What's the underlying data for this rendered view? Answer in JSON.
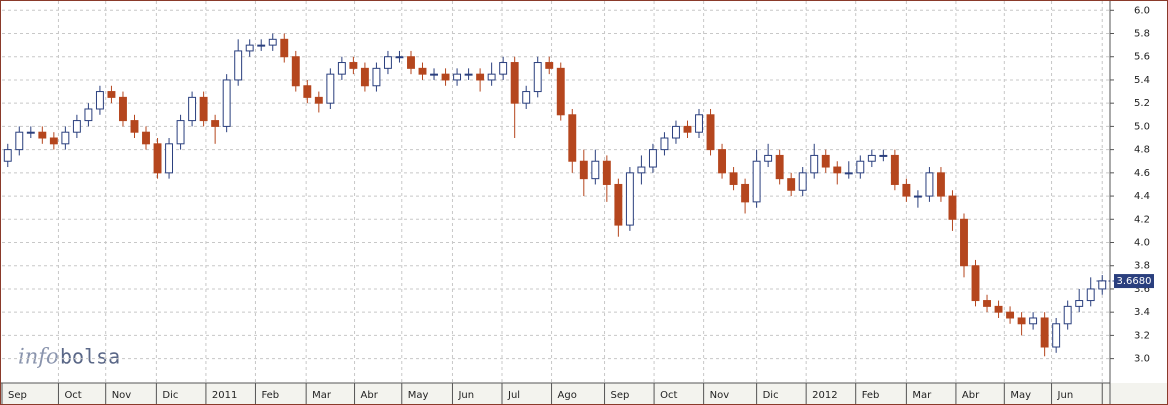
{
  "chart_data": {
    "type": "candlestick",
    "open": [
      4.7,
      4.8,
      4.95,
      4.95,
      4.9,
      4.85,
      4.95,
      5.05,
      5.15,
      5.3,
      5.25,
      5.05,
      4.95,
      4.85,
      4.6,
      4.85,
      5.05,
      5.25,
      5.05,
      5.0,
      5.4,
      5.65,
      5.7,
      5.7,
      5.75,
      5.6,
      5.35,
      5.25,
      5.2,
      5.45,
      5.55,
      5.5,
      5.35,
      5.5,
      5.6,
      5.6,
      5.5,
      5.45,
      5.45,
      5.4,
      5.45,
      5.45,
      5.4,
      5.45,
      5.55,
      5.2,
      5.3,
      5.55,
      5.5,
      5.1,
      4.7,
      4.55,
      4.7,
      4.5,
      4.15,
      4.6,
      4.65,
      4.8,
      4.9,
      5.0,
      4.95,
      5.1,
      4.8,
      4.6,
      4.5,
      4.35,
      4.7,
      4.75,
      4.55,
      4.45,
      4.6,
      4.75,
      4.65,
      4.6,
      4.6,
      4.7,
      4.75,
      4.75,
      4.5,
      4.4,
      4.4,
      4.6,
      4.4,
      4.2,
      3.8,
      3.5,
      3.45,
      3.4,
      3.35,
      3.3,
      3.35,
      3.1,
      3.3,
      3.45,
      3.5,
      3.6
    ],
    "high": [
      4.85,
      5.0,
      5.0,
      5.0,
      4.95,
      5.0,
      5.1,
      5.2,
      5.35,
      5.35,
      5.3,
      5.1,
      5.0,
      4.9,
      4.9,
      5.1,
      5.3,
      5.3,
      5.1,
      5.45,
      5.75,
      5.75,
      5.75,
      5.8,
      5.8,
      5.65,
      5.4,
      5.3,
      5.5,
      5.6,
      5.6,
      5.55,
      5.55,
      5.65,
      5.65,
      5.65,
      5.55,
      5.5,
      5.5,
      5.5,
      5.5,
      5.5,
      5.55,
      5.6,
      5.6,
      5.35,
      5.6,
      5.6,
      5.55,
      5.15,
      4.8,
      4.8,
      4.75,
      4.55,
      4.65,
      4.75,
      4.85,
      4.95,
      5.05,
      5.05,
      5.15,
      5.15,
      4.85,
      4.65,
      4.55,
      4.8,
      4.85,
      4.8,
      4.6,
      4.65,
      4.85,
      4.8,
      4.7,
      4.7,
      4.75,
      4.8,
      4.8,
      4.8,
      4.55,
      4.45,
      4.65,
      4.65,
      4.45,
      4.25,
      3.85,
      3.55,
      3.5,
      3.45,
      3.4,
      3.4,
      3.4,
      3.35,
      3.5,
      3.6,
      3.7,
      3.72
    ],
    "low": [
      4.65,
      4.75,
      4.9,
      4.85,
      4.8,
      4.8,
      4.9,
      5.0,
      5.1,
      5.2,
      5.0,
      4.9,
      4.8,
      4.55,
      4.55,
      4.8,
      5.0,
      5.0,
      4.85,
      4.95,
      5.35,
      5.6,
      5.65,
      5.65,
      5.55,
      5.3,
      5.2,
      5.12,
      5.15,
      5.4,
      5.45,
      5.3,
      5.3,
      5.45,
      5.55,
      5.45,
      5.4,
      5.4,
      5.35,
      5.35,
      5.4,
      5.3,
      5.35,
      5.4,
      4.9,
      5.15,
      5.25,
      5.45,
      5.05,
      4.6,
      4.4,
      4.5,
      4.35,
      4.05,
      4.1,
      4.5,
      4.6,
      4.75,
      4.85,
      4.9,
      4.9,
      4.75,
      4.55,
      4.45,
      4.25,
      4.3,
      4.65,
      4.5,
      4.4,
      4.4,
      4.55,
      4.6,
      4.5,
      4.55,
      4.55,
      4.65,
      4.7,
      4.45,
      4.35,
      4.3,
      4.35,
      4.35,
      4.1,
      3.7,
      3.45,
      3.4,
      3.35,
      3.3,
      3.2,
      3.25,
      3.02,
      3.05,
      3.25,
      3.4,
      3.45,
      3.55
    ],
    "close": [
      4.8,
      4.95,
      4.95,
      4.9,
      4.85,
      4.95,
      5.05,
      5.15,
      5.3,
      5.25,
      5.05,
      4.95,
      4.85,
      4.6,
      4.85,
      5.05,
      5.25,
      5.05,
      5.0,
      5.4,
      5.65,
      5.7,
      5.7,
      5.75,
      5.6,
      5.35,
      5.25,
      5.2,
      5.45,
      5.55,
      5.5,
      5.35,
      5.5,
      5.6,
      5.6,
      5.5,
      5.45,
      5.45,
      5.4,
      5.45,
      5.45,
      5.4,
      5.45,
      5.55,
      5.2,
      5.3,
      5.55,
      5.5,
      5.1,
      4.7,
      4.55,
      4.7,
      4.5,
      4.15,
      4.6,
      4.65,
      4.8,
      4.9,
      5.0,
      4.95,
      5.1,
      4.8,
      4.6,
      4.5,
      4.35,
      4.7,
      4.75,
      4.55,
      4.45,
      4.6,
      4.75,
      4.65,
      4.6,
      4.6,
      4.7,
      4.75,
      4.75,
      4.5,
      4.4,
      4.4,
      4.6,
      4.4,
      4.2,
      3.8,
      3.5,
      3.45,
      3.4,
      3.35,
      3.3,
      3.35,
      3.1,
      3.3,
      3.45,
      3.5,
      3.6,
      3.67
    ],
    "colors": {
      "up": "#2a3f7e",
      "down": "#b5461e"
    },
    "xlim": [
      0,
      96
    ],
    "xticks": [
      {
        "value": 0,
        "label": "Sep"
      },
      {
        "value": 4.9,
        "label": "Oct"
      },
      {
        "value": 9.0,
        "label": "Nov"
      },
      {
        "value": 13.4,
        "label": "Dic"
      },
      {
        "value": 17.7,
        "label": "2011"
      },
      {
        "value": 22.0,
        "label": "Feb"
      },
      {
        "value": 26.4,
        "label": "Mar"
      },
      {
        "value": 30.6,
        "label": "Abr"
      },
      {
        "value": 34.7,
        "label": "May"
      },
      {
        "value": 39.1,
        "label": "Jun"
      },
      {
        "value": 43.4,
        "label": "Jul"
      },
      {
        "value": 47.7,
        "label": "Ago"
      },
      {
        "value": 52.3,
        "label": "Sep"
      },
      {
        "value": 56.6,
        "label": "Oct"
      },
      {
        "value": 60.9,
        "label": "Nov"
      },
      {
        "value": 65.5,
        "label": "Dic"
      },
      {
        "value": 69.8,
        "label": "2012"
      },
      {
        "value": 74.1,
        "label": "Feb"
      },
      {
        "value": 78.5,
        "label": "Mar"
      },
      {
        "value": 82.8,
        "label": "Abr"
      },
      {
        "value": 87.0,
        "label": "May"
      },
      {
        "value": 91.1,
        "label": "Jun"
      },
      {
        "value": 95.5,
        "label": ""
      }
    ],
    "ylim": [
      2.79,
      6.08
    ],
    "yticks": [
      {
        "value": 3,
        "label": "3.0"
      },
      {
        "value": 3.2,
        "label": "3.2"
      },
      {
        "value": 3.4,
        "label": "3.4"
      },
      {
        "value": 3.6,
        "label": "3.6"
      },
      {
        "value": 3.8,
        "label": "3.8"
      },
      {
        "value": 4,
        "label": "4.0"
      },
      {
        "value": 4.2,
        "label": "4.2"
      },
      {
        "value": 4.4,
        "label": "4.4"
      },
      {
        "value": 4.6,
        "label": "4.6"
      },
      {
        "value": 4.8,
        "label": "4.8"
      },
      {
        "value": 5,
        "label": "5.0"
      },
      {
        "value": 5.2,
        "label": "5.2"
      },
      {
        "value": 5.4,
        "label": "5.4"
      },
      {
        "value": 5.6,
        "label": "5.6"
      },
      {
        "value": 5.8,
        "label": "5.8"
      },
      {
        "value": 6,
        "label": "6.0"
      }
    ],
    "grid": true,
    "last_price": {
      "value": 3.668,
      "label": "3.6680"
    },
    "watermark": [
      "info",
      "bolsa"
    ]
  }
}
